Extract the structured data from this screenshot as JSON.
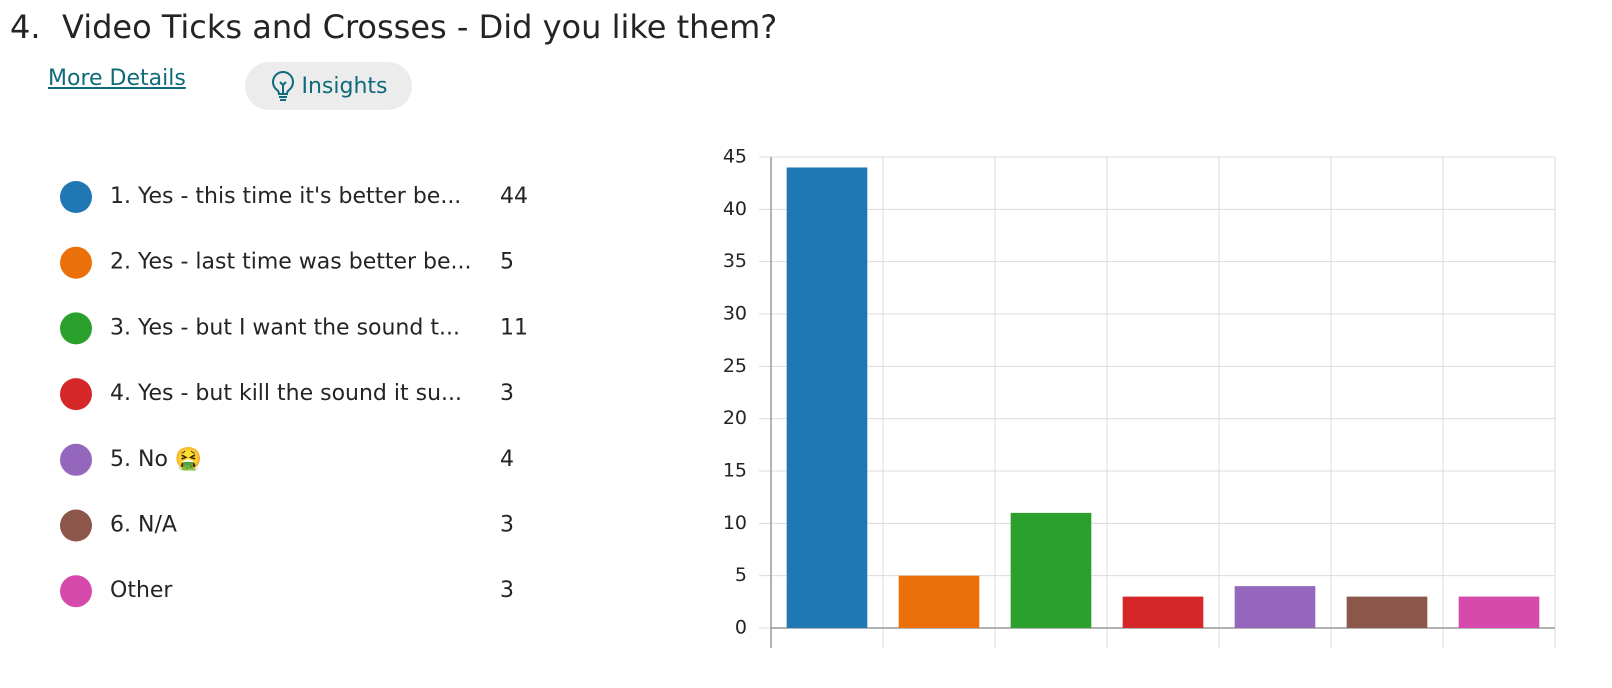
{
  "header": {
    "number": "4.",
    "title": "Video Ticks and Crosses - Did you like them?",
    "more_details": "More Details",
    "insights": "Insights"
  },
  "chart_data": {
    "type": "bar",
    "categories": [
      "1. Yes - this time it's better be...",
      "2. Yes - last time was better be...",
      "3. Yes - but I want the sound t...",
      "4. Yes - but kill the sound it su...",
      "5. No 🤮",
      "6. N/A",
      "Other"
    ],
    "values": [
      44,
      5,
      11,
      3,
      4,
      3,
      3
    ],
    "colors": [
      "#1f77b4",
      "#ec7009",
      "#2ca02c",
      "#d62728",
      "#9467bd",
      "#8c564b",
      "#d64aab"
    ],
    "ylim": [
      0,
      45
    ],
    "yticks": [
      0,
      5,
      10,
      15,
      20,
      25,
      30,
      35,
      40,
      45
    ],
    "grid": true
  }
}
